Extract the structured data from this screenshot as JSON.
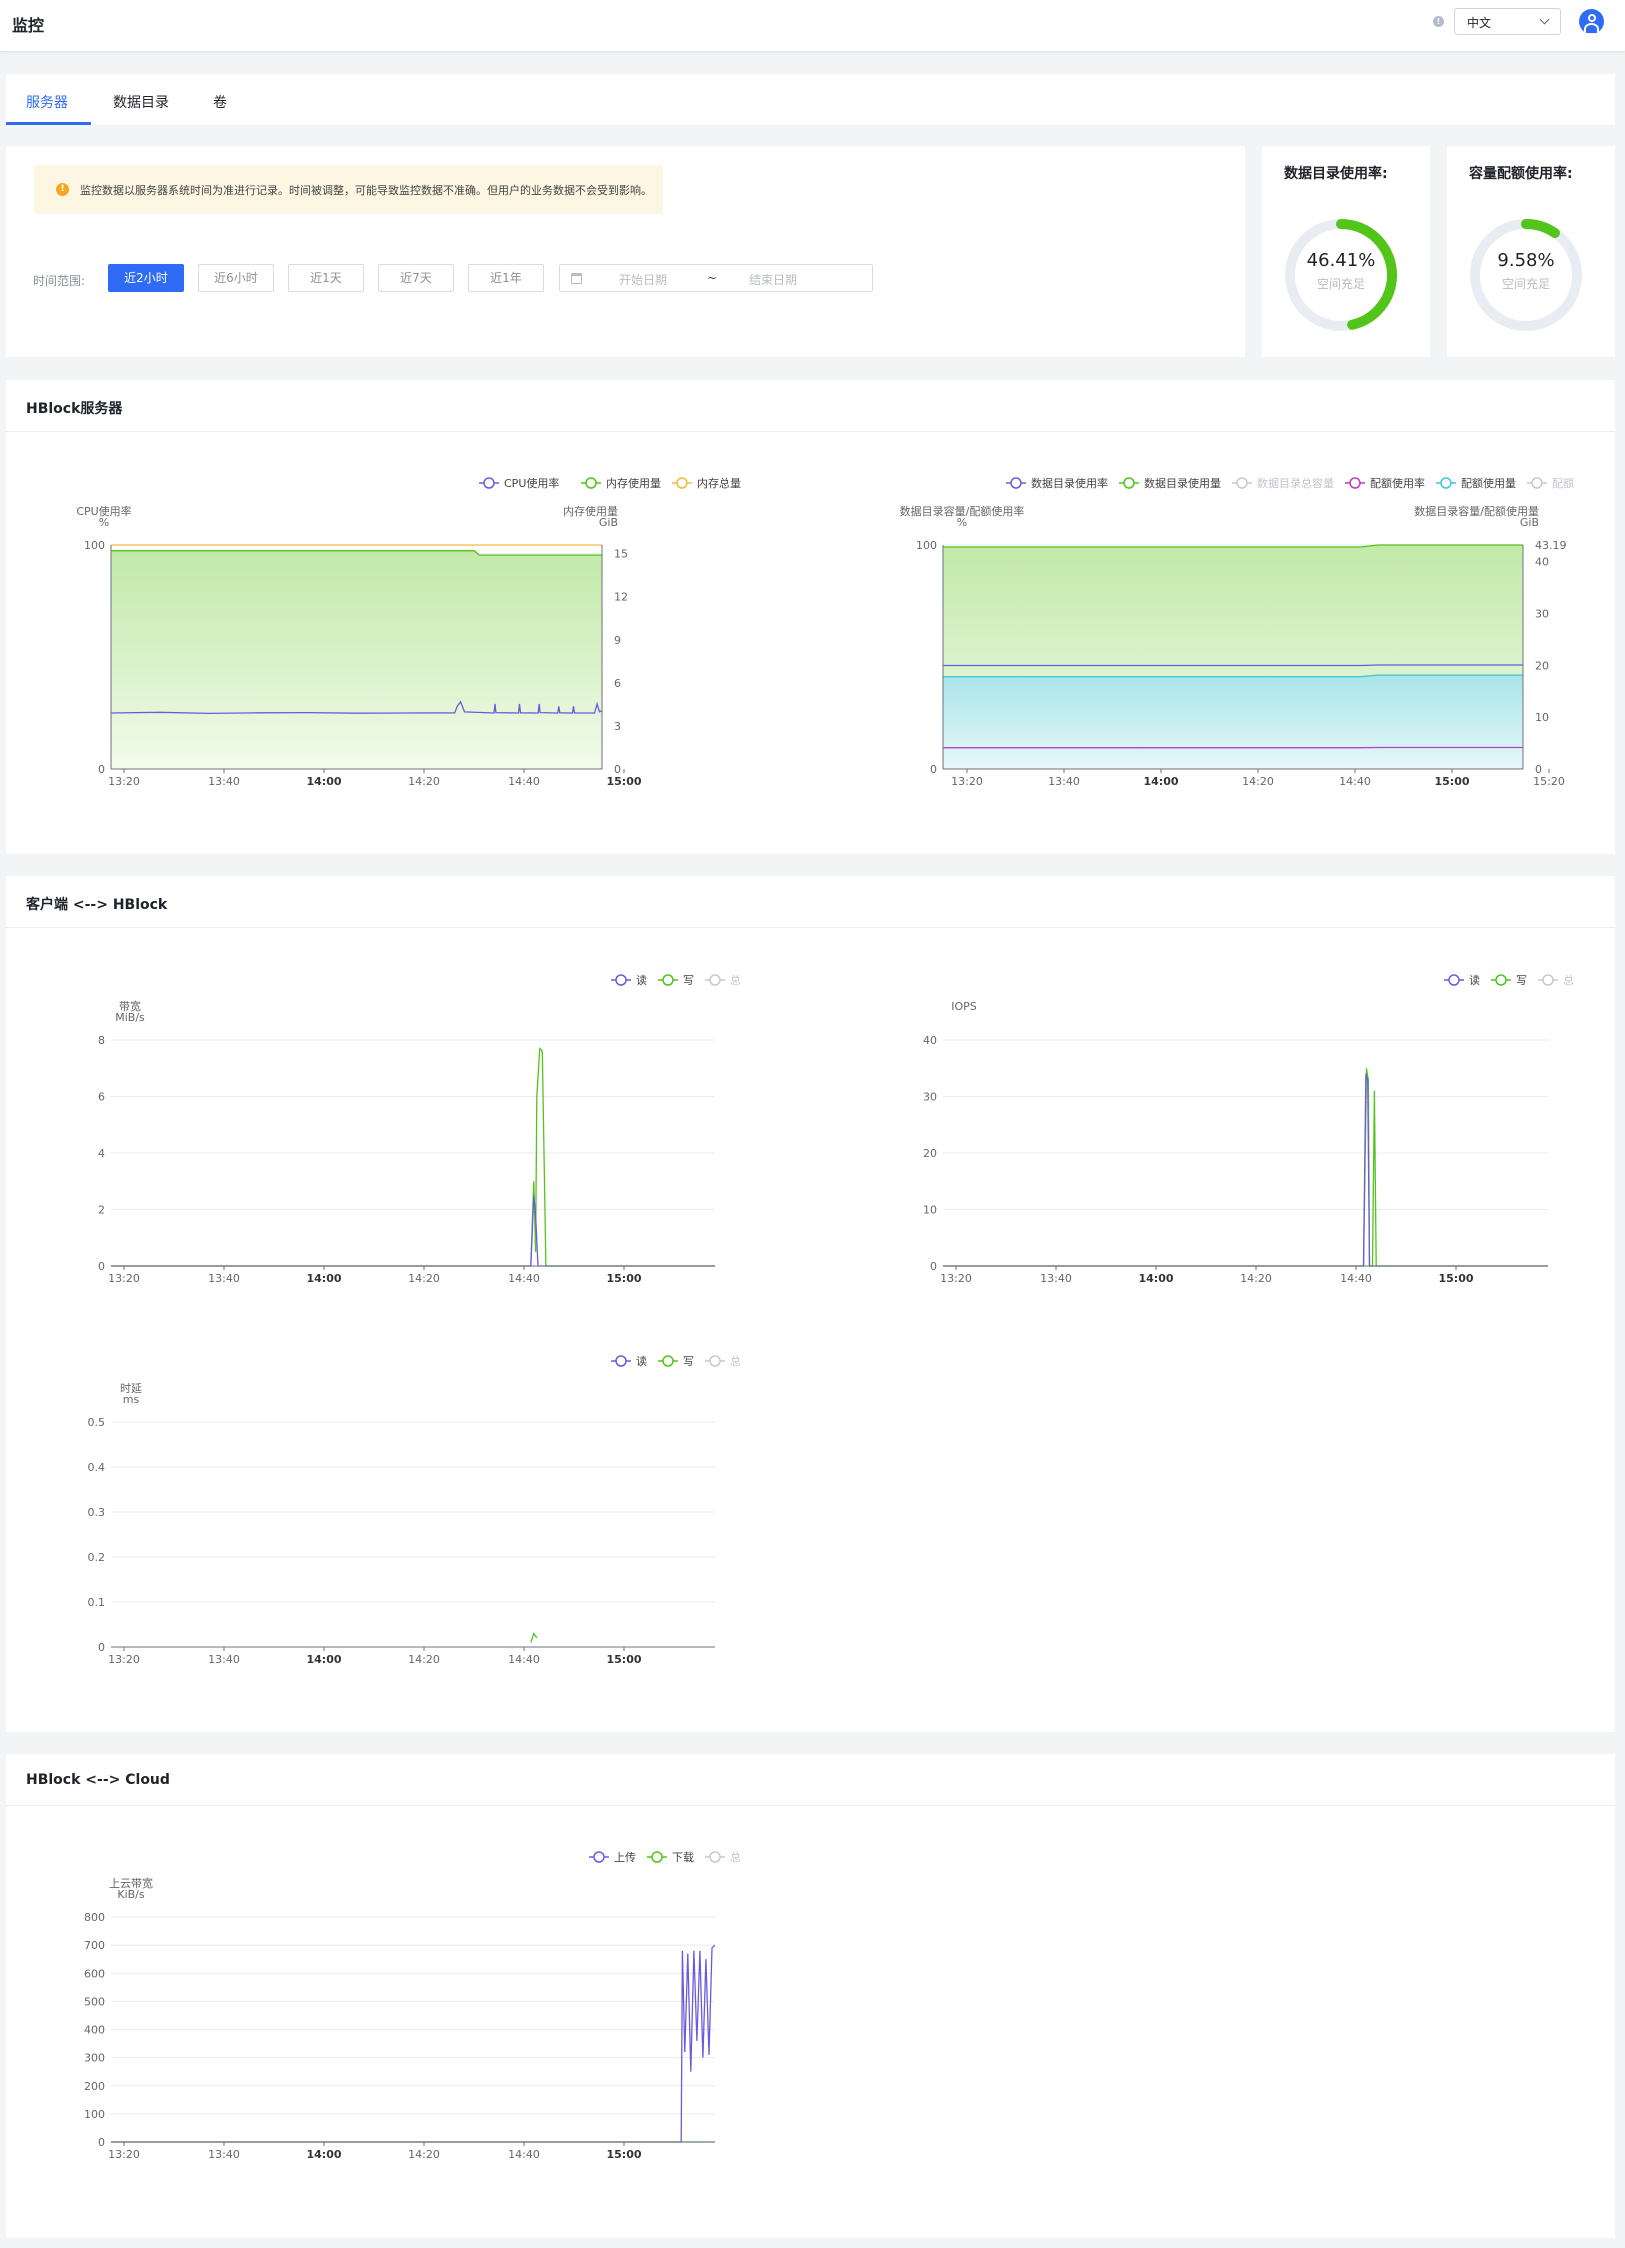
{
  "header": {
    "title": "监控",
    "language": "中文"
  },
  "tabs": [
    {
      "label": "服务器",
      "active": true
    },
    {
      "label": "数据目录",
      "active": false
    },
    {
      "label": "卷",
      "active": false
    }
  ],
  "notice": "监控数据以服务器系统时间为准进行记录。时间被调整，可能导致监控数据不准确。但用户的业务数据不会受到影响。",
  "time_range": {
    "label": "时间范围:",
    "options": [
      "近2小时",
      "近6小时",
      "近1天",
      "近7天",
      "近1年"
    ],
    "selected": "近2小时",
    "start_placeholder": "开始日期",
    "separator": "~",
    "end_placeholder": "结束日期"
  },
  "usage": [
    {
      "title": "数据目录使用率:",
      "percent_text": "46.41%",
      "percent": 46.41,
      "subtitle": "空间充足"
    },
    {
      "title": "容量配额使用率:",
      "percent_text": "9.58%",
      "percent": 9.58,
      "subtitle": "空间充足"
    }
  ],
  "sections": {
    "server": "HBlock服务器",
    "client": "客户端 <--> HBlock",
    "cloud": "HBlock <--> Cloud"
  },
  "colors": {
    "primary": "#2f6bf5",
    "green": "#52c41a",
    "purple": "#6b5bdb",
    "orange": "#f5b942",
    "magenta": "#b83fc9",
    "cyan": "#3ec6dc",
    "gray": "#c7c9cc"
  },
  "chart_data": [
    {
      "id": "cpu-memory",
      "type": "area",
      "legend": [
        {
          "name": "CPU使用率",
          "color": "#6b5bdb",
          "active": true
        },
        {
          "name": "内存使用量",
          "color": "#52c41a",
          "active": true
        },
        {
          "name": "内存总量",
          "color": "#f5b942",
          "active": true
        }
      ],
      "ylabel_left": [
        "CPU使用率",
        "%"
      ],
      "ylabel_right": [
        "内存使用量",
        "GiB"
      ],
      "y_left_ticks": [
        "0",
        "100"
      ],
      "y_right_ticks": [
        "0",
        "3",
        "6",
        "9",
        "12",
        "15"
      ],
      "ylim_left": [
        0,
        100
      ],
      "ylim_right": [
        0,
        15.6
      ],
      "x_ticks": [
        {
          "label": "13:20",
          "bold": false
        },
        {
          "label": "13:40",
          "bold": false
        },
        {
          "label": "14:00",
          "bold": true
        },
        {
          "label": "14:20",
          "bold": false
        },
        {
          "label": "14:40",
          "bold": false
        },
        {
          "label": "15:00",
          "bold": true
        }
      ],
      "series": [
        {
          "name": "内存总量",
          "axis": "right",
          "x": [
            0,
            1
          ],
          "y": [
            15.6,
            15.6
          ]
        },
        {
          "name": "内存使用量",
          "axis": "right",
          "x": [
            0,
            0.74,
            0.75,
            1
          ],
          "y": [
            15.2,
            15.2,
            14.9,
            14.9
          ]
        },
        {
          "name": "CPU使用率",
          "axis": "left",
          "x": [
            0,
            0.1,
            0.2,
            0.3,
            0.4,
            0.5,
            0.6,
            0.7,
            0.705,
            0.712,
            0.72,
            0.78,
            0.782,
            0.784,
            0.83,
            0.832,
            0.834,
            0.87,
            0.872,
            0.874,
            0.91,
            0.912,
            0.914,
            0.94,
            0.942,
            0.944,
            0.985,
            0.99,
            0.995,
            1
          ],
          "y": [
            25,
            25.3,
            24.8,
            25.1,
            25.2,
            24.9,
            25,
            25.1,
            28,
            30,
            25.5,
            25,
            29,
            25.2,
            25,
            29,
            25.1,
            25,
            29,
            25.2,
            25,
            28,
            25.1,
            25,
            28,
            25,
            25,
            29,
            25.5,
            26
          ]
        }
      ]
    },
    {
      "id": "datadir-quota",
      "type": "area",
      "legend": [
        {
          "name": "数据目录使用率",
          "color": "#6b5bdb",
          "active": true
        },
        {
          "name": "数据目录使用量",
          "color": "#52c41a",
          "active": true
        },
        {
          "name": "数据目录总容量",
          "color": "#c7c9cc",
          "active": false
        },
        {
          "name": "配额使用率",
          "color": "#b83fc9",
          "active": true
        },
        {
          "name": "配额使用量",
          "color": "#3ec6dc",
          "active": true
        },
        {
          "name": "配额",
          "color": "#c7c9cc",
          "active": false
        }
      ],
      "ylabel_left": [
        "数据目录容量/配额使用率",
        "%"
      ],
      "ylabel_right": [
        "数据目录容量/配额使用量",
        "GiB"
      ],
      "y_left_ticks": [
        "0",
        "100"
      ],
      "y_right_ticks": [
        "0",
        "10",
        "20",
        "30",
        "40",
        "43.19"
      ],
      "ylim_left": [
        0,
        100
      ],
      "ylim_right": [
        0,
        43.19
      ],
      "x_ticks": [
        {
          "label": "13:20",
          "bold": false
        },
        {
          "label": "13:40",
          "bold": false
        },
        {
          "label": "14:00",
          "bold": true
        },
        {
          "label": "14:20",
          "bold": false
        },
        {
          "label": "14:40",
          "bold": false
        },
        {
          "label": "15:00",
          "bold": true
        },
        {
          "label": "15:20",
          "bold": false
        }
      ],
      "series": [
        {
          "name": "数据目录使用量",
          "axis": "right",
          "x": [
            0,
            0.72,
            0.75,
            1
          ],
          "y": [
            42.8,
            42.8,
            43.19,
            43.19
          ]
        },
        {
          "name": "配额使用量",
          "axis": "right",
          "x": [
            0,
            0.72,
            0.75,
            1
          ],
          "y": [
            17.8,
            17.8,
            18.1,
            18.1
          ]
        },
        {
          "name": "数据目录使用率",
          "axis": "left",
          "x": [
            0,
            0.72,
            0.75,
            1
          ],
          "y": [
            46.2,
            46.2,
            46.41,
            46.41
          ]
        },
        {
          "name": "配额使用率",
          "axis": "left",
          "x": [
            0,
            0.72,
            0.75,
            1
          ],
          "y": [
            9.5,
            9.5,
            9.58,
            9.58
          ]
        }
      ]
    },
    {
      "id": "bandwidth",
      "type": "line",
      "legend": [
        {
          "name": "读",
          "color": "#6b5bdb",
          "active": true
        },
        {
          "name": "写",
          "color": "#52c41a",
          "active": true
        },
        {
          "name": "总",
          "color": "#c7c9cc",
          "active": false
        }
      ],
      "ylabel": [
        "带宽",
        "MiB/s"
      ],
      "y_ticks": [
        "0",
        "2",
        "4",
        "6",
        "8"
      ],
      "ylim": [
        0,
        8
      ],
      "x_ticks": [
        {
          "label": "13:20",
          "bold": false
        },
        {
          "label": "13:40",
          "bold": false
        },
        {
          "label": "14:00",
          "bold": true
        },
        {
          "label": "14:20",
          "bold": false
        },
        {
          "label": "14:40",
          "bold": false
        },
        {
          "label": "15:00",
          "bold": true
        }
      ],
      "series": [
        {
          "name": "写",
          "x": [
            0,
            0.695,
            0.7,
            0.703,
            0.705,
            0.71,
            0.714,
            0.72,
            1
          ],
          "y": [
            0,
            0,
            3,
            0.5,
            6,
            7.7,
            7.6,
            0,
            0
          ]
        },
        {
          "name": "读",
          "x": [
            0,
            0.695,
            0.7,
            0.703,
            0.707,
            1
          ],
          "y": [
            0,
            0,
            2.5,
            1.8,
            0,
            0
          ]
        }
      ]
    },
    {
      "id": "iops",
      "type": "line",
      "legend": [
        {
          "name": "读",
          "color": "#6b5bdb",
          "active": true
        },
        {
          "name": "写",
          "color": "#52c41a",
          "active": true
        },
        {
          "name": "总",
          "color": "#c7c9cc",
          "active": false
        }
      ],
      "ylabel": [
        "IOPS"
      ],
      "y_ticks": [
        "0",
        "10",
        "20",
        "30",
        "40"
      ],
      "ylim": [
        0,
        40
      ],
      "x_ticks": [
        {
          "label": "13:20",
          "bold": false
        },
        {
          "label": "13:40",
          "bold": false
        },
        {
          "label": "14:00",
          "bold": true
        },
        {
          "label": "14:20",
          "bold": false
        },
        {
          "label": "14:40",
          "bold": false
        },
        {
          "label": "15:00",
          "bold": true
        }
      ],
      "series": [
        {
          "name": "写",
          "x": [
            0,
            0.695,
            0.7,
            0.703,
            0.705,
            0.71,
            0.713,
            0.716,
            1
          ],
          "y": [
            0,
            0,
            35,
            33,
            0,
            0,
            31,
            0,
            0
          ]
        },
        {
          "name": "读",
          "x": [
            0,
            0.695,
            0.699,
            0.702,
            0.705,
            1
          ],
          "y": [
            0,
            0,
            34,
            33,
            0,
            0
          ]
        }
      ]
    },
    {
      "id": "latency",
      "type": "line",
      "legend": [
        {
          "name": "读",
          "color": "#6b5bdb",
          "active": true
        },
        {
          "name": "写",
          "color": "#52c41a",
          "active": true
        },
        {
          "name": "总",
          "color": "#c7c9cc",
          "active": false
        }
      ],
      "ylabel": [
        "时延",
        "ms"
      ],
      "y_ticks": [
        "0",
        "0.1",
        "0.2",
        "0.3",
        "0.4",
        "0.5"
      ],
      "ylim": [
        0,
        0.5
      ],
      "x_ticks": [
        {
          "label": "13:20",
          "bold": false
        },
        {
          "label": "13:40",
          "bold": false
        },
        {
          "label": "14:00",
          "bold": true
        },
        {
          "label": "14:20",
          "bold": false
        },
        {
          "label": "14:40",
          "bold": false
        },
        {
          "label": "15:00",
          "bold": true
        }
      ],
      "series": [
        {
          "name": "写",
          "x": [
            0.695,
            0.7,
            0.705
          ],
          "y": [
            0.01,
            0.03,
            0.02
          ]
        }
      ]
    },
    {
      "id": "cloud-bandwidth",
      "type": "line",
      "legend": [
        {
          "name": "上传",
          "color": "#6b5bdb",
          "active": true
        },
        {
          "name": "下载",
          "color": "#52c41a",
          "active": true
        },
        {
          "name": "总",
          "color": "#c7c9cc",
          "active": false
        }
      ],
      "ylabel": [
        "上云带宽",
        "KiB/s"
      ],
      "y_ticks": [
        "0",
        "100",
        "200",
        "300",
        "400",
        "500",
        "600",
        "700",
        "800"
      ],
      "ylim": [
        0,
        800
      ],
      "x_ticks": [
        {
          "label": "13:20",
          "bold": false
        },
        {
          "label": "13:40",
          "bold": false
        },
        {
          "label": "14:00",
          "bold": true
        },
        {
          "label": "14:20",
          "bold": false
        },
        {
          "label": "14:40",
          "bold": false
        },
        {
          "label": "15:00",
          "bold": true
        }
      ],
      "series": [
        {
          "name": "下载",
          "x": [
            0,
            1
          ],
          "y": [
            0,
            0
          ]
        },
        {
          "name": "上传",
          "x": [
            0,
            0.944,
            0.946,
            0.95,
            0.955,
            0.96,
            0.965,
            0.97,
            0.975,
            0.98,
            0.985,
            0.99,
            0.995,
            1
          ],
          "y": [
            0,
            0,
            680,
            320,
            670,
            250,
            680,
            360,
            680,
            300,
            650,
            310,
            690,
            700
          ]
        }
      ]
    }
  ]
}
